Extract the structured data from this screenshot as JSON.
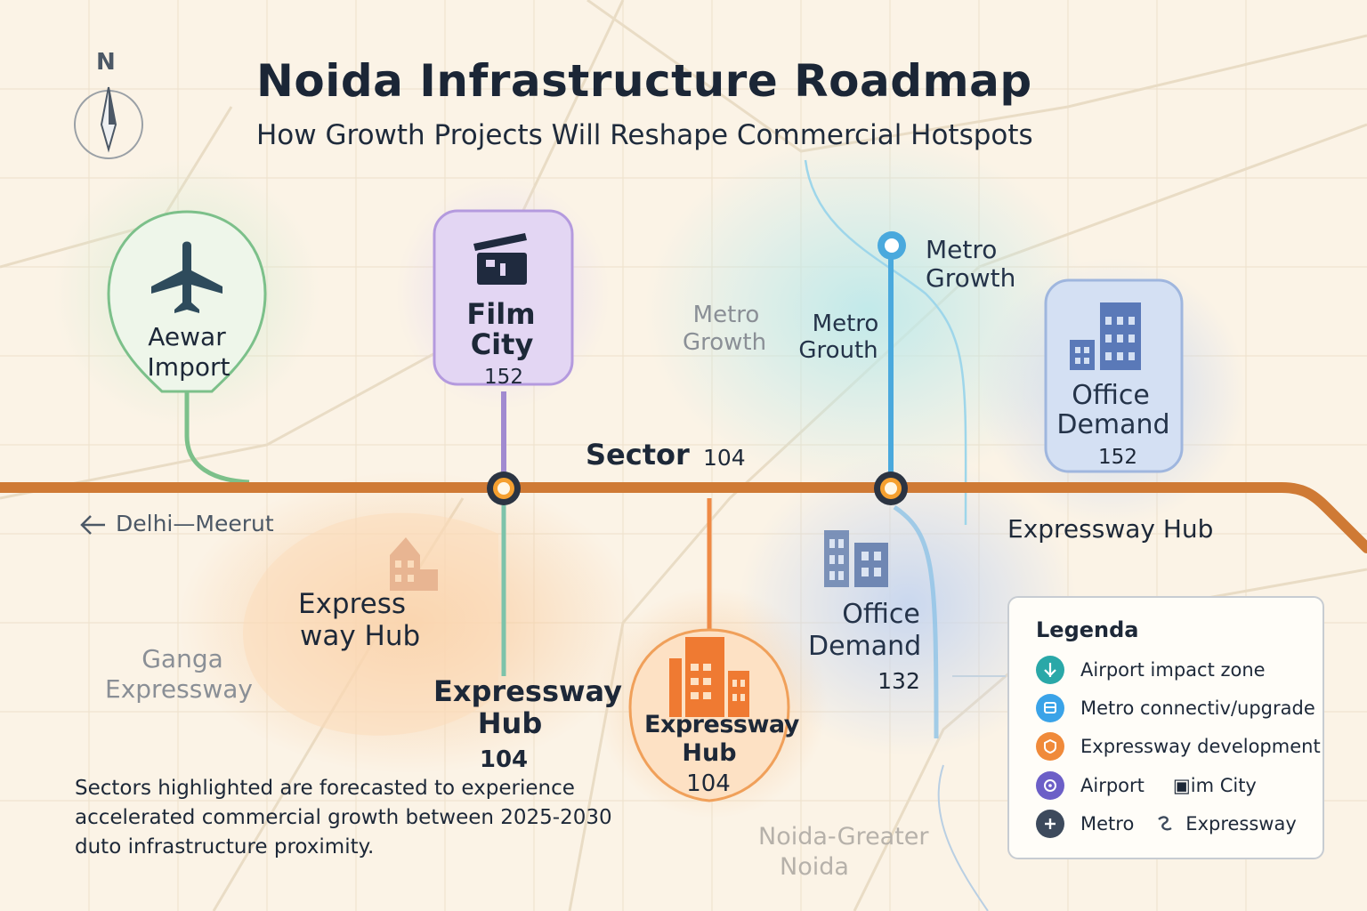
{
  "header": {
    "title": "Noida Infrastructure Roadmap",
    "subtitle": "How Growth Projects Will Reshape Commercial Hotspots"
  },
  "compass": {
    "label": "N"
  },
  "map_labels": {
    "airport_line1": "Aewar",
    "airport_line2": "Import",
    "film_line1": "Film",
    "film_line2": "City",
    "film_sector": "152",
    "metro_faded_line1": "Metro",
    "metro_faded_line2": "Growth",
    "metro_mid_line1": "Metro",
    "metro_mid_line2": "Grouth",
    "metro_top_line1": "Metro",
    "metro_top_line2": "Growth",
    "office_top_line1": "Office",
    "office_top_line2": "Demand",
    "office_top_sector": "152",
    "sector_label": "Sector",
    "sector_number": "104",
    "delhi_meerut": "Delhi—Meerut",
    "expressway_hub_right": "Expressway Hub",
    "express_left_line1": "Express",
    "express_left_line2": "way Hub",
    "ganga_line1": "Ganga",
    "ganga_line2": "Expressway",
    "exp_center_line1": "Expressway",
    "exp_center_line2": "Hub",
    "exp_center_sector": "104",
    "exp_pin_line1": "Expressway",
    "exp_pin_line2": "Hub",
    "exp_pin_sector": "104",
    "office_low_line1": "Office",
    "office_low_line2": "Demand",
    "office_low_sector": "132",
    "noida_greater_line1": "Noida-Greater",
    "noida_greater_line2": "Noida"
  },
  "note": {
    "line1": "Sectors highlighted are forecasted to experience",
    "line2": "accelerated commercial growth between 2025-2030",
    "line3": "duto infrastructure proximity."
  },
  "legend": {
    "title": "Legenda",
    "items": [
      {
        "label": "Airport impact zone",
        "color": "#2aa8a8",
        "icon": "airport-icon"
      },
      {
        "label": "Metro connectiv/upgrade",
        "color": "#3aa3e8",
        "icon": "metro-icon"
      },
      {
        "label": "Expressway development",
        "color": "#f08a3a",
        "icon": "expressway-icon"
      },
      {
        "label": "Airport",
        "label2": "▣im City",
        "color": "#6c5fc7",
        "icon": "film-icon"
      },
      {
        "label": "Metro",
        "label2": "Expressway",
        "color": "#3d4a5c",
        "icon": "plus-icon"
      }
    ]
  },
  "colors": {
    "expressway": "#cf7a35",
    "metro": "#4aa9dd",
    "airport": "#7cc08a",
    "film": "#a18ad0",
    "office": "#7d9ad0",
    "hub": "#f0a05a"
  }
}
